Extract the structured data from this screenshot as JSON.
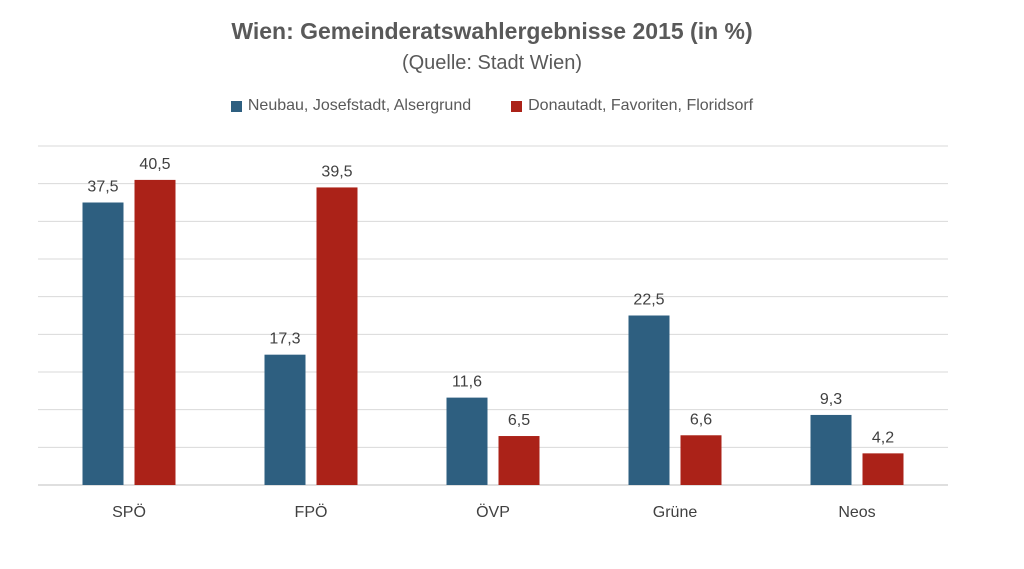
{
  "chart_data": {
    "type": "bar",
    "title": "Wien: Gemeinderatswahlergebnisse 2015 (in %)",
    "subtitle": "(Quelle: Stadt Wien)",
    "categories": [
      "SPÖ",
      "FPÖ",
      "ÖVP",
      "Grüne",
      "Neos"
    ],
    "series": [
      {
        "name": "Neubau, Josefstadt, Alsergrund",
        "color": "#2e5f80",
        "values": [
          37.5,
          17.3,
          11.6,
          22.5,
          9.3
        ],
        "labels": [
          "37,5",
          "17,3",
          "11,6",
          "22,5",
          "9,3"
        ]
      },
      {
        "name": "Donautadt, Favoriten, Floridsorf",
        "color": "#ab2218",
        "values": [
          40.5,
          39.5,
          6.5,
          6.6,
          4.2
        ],
        "labels": [
          "40,5",
          "39,5",
          "6,5",
          "6,6",
          "4,2"
        ]
      }
    ],
    "ylim": [
      0,
      45
    ],
    "grid": true,
    "legend_position": "top"
  }
}
